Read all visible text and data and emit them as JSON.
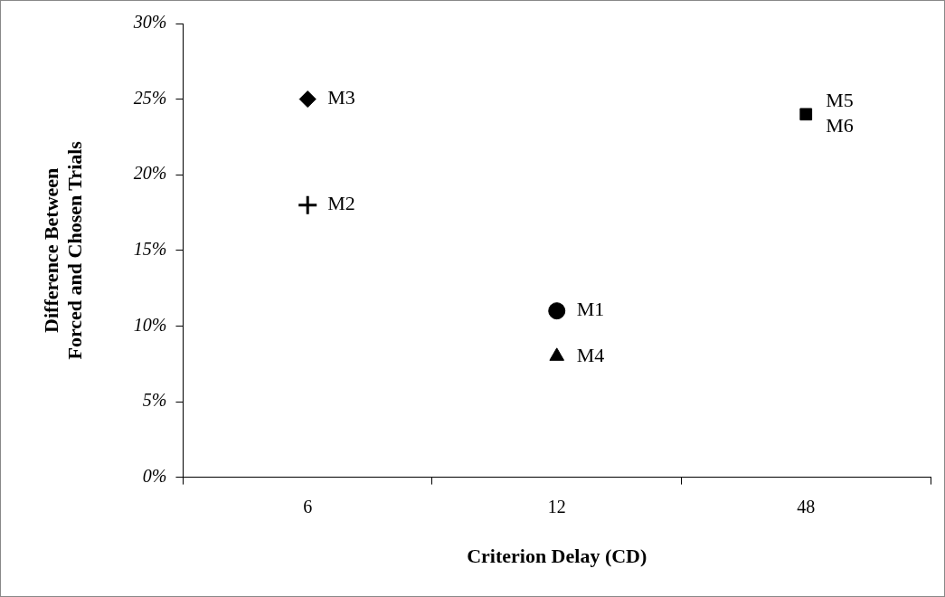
{
  "chart_data": {
    "type": "scatter",
    "xlabel": "Criterion Delay (CD)",
    "ylabel": "Difference Between\nForced and Chosen Trials",
    "categories": [
      "6",
      "12",
      "48"
    ],
    "ylim": [
      0,
      30
    ],
    "yticks": [
      {
        "value": 0,
        "label": "0%"
      },
      {
        "value": 5,
        "label": "5%"
      },
      {
        "value": 10,
        "label": "10%"
      },
      {
        "value": 15,
        "label": "15%"
      },
      {
        "value": 20,
        "label": "20%"
      },
      {
        "value": 25,
        "label": "25%"
      },
      {
        "value": 30,
        "label": "30%"
      }
    ],
    "grid": false,
    "legend": false,
    "series": [
      {
        "name": "M1",
        "color": "#000000",
        "marker": "circle",
        "x": [
          "12"
        ],
        "values": [
          11
        ]
      },
      {
        "name": "M2",
        "color": "#000000",
        "marker": "cross",
        "x": [
          "6"
        ],
        "values": [
          18
        ]
      },
      {
        "name": "M3",
        "color": "#000000",
        "marker": "diamond",
        "x": [
          "6"
        ],
        "values": [
          25
        ]
      },
      {
        "name": "M4",
        "color": "#000000",
        "marker": "triangle",
        "x": [
          "12"
        ],
        "values": [
          8
        ]
      },
      {
        "name": "M5\nM6",
        "color": "#000000",
        "marker": "square",
        "x": [
          "48"
        ],
        "values": [
          24
        ]
      }
    ]
  }
}
